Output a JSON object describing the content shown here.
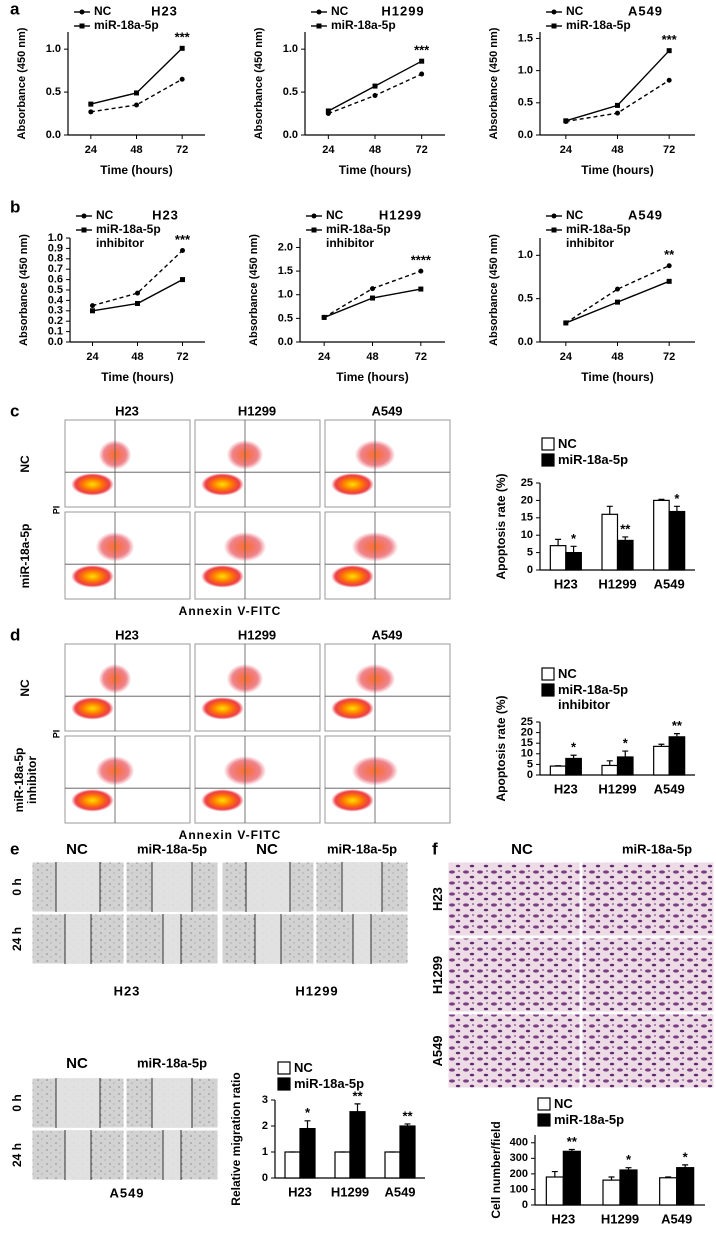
{
  "chart_data": [
    {
      "type": "line",
      "title": "H23",
      "x": [
        24,
        48,
        72
      ],
      "xlim": [
        12,
        84
      ],
      "xticks": [
        24,
        48,
        72
      ],
      "ylim": [
        0,
        1.2
      ],
      "yticks": [
        {
          "value": 0,
          "label": "0.0"
        },
        0.5,
        {
          "value": 1,
          "label": "1.0"
        }
      ],
      "x_label": "Time (hours)",
      "y_label": "Absorbance (450 nm)",
      "annotation": "***",
      "series": [
        {
          "name": "NC",
          "color": "#000000",
          "dashed": true,
          "marker": "circle",
          "values": [
            0.27,
            0.35,
            0.65
          ]
        },
        {
          "name": "miR-18a-5p",
          "color": "#000000",
          "dashed": false,
          "marker": "square",
          "values": [
            0.36,
            0.49,
            1.01
          ]
        }
      ]
    },
    {
      "type": "line",
      "title": "H1299",
      "x": [
        24,
        48,
        72
      ],
      "xlim": [
        12,
        84
      ],
      "xticks": [
        24,
        48,
        72
      ],
      "ylim": [
        0,
        1.2
      ],
      "yticks": [
        {
          "value": 0,
          "label": "0.0"
        },
        0.5,
        {
          "value": 1,
          "label": "1.0"
        }
      ],
      "x_label": "Time (hours)",
      "y_label": "Absorbance (450 nm)",
      "annotation": "***",
      "series": [
        {
          "name": "NC",
          "color": "#000000",
          "dashed": true,
          "marker": "circle",
          "values": [
            0.25,
            0.46,
            0.71
          ]
        },
        {
          "name": "miR-18a-5p",
          "color": "#000000",
          "dashed": false,
          "marker": "square",
          "values": [
            0.28,
            0.57,
            0.86
          ]
        }
      ]
    },
    {
      "type": "line",
      "title": "A549",
      "x": [
        24,
        48,
        72
      ],
      "xlim": [
        12,
        84
      ],
      "xticks": [
        24,
        48,
        72
      ],
      "ylim": [
        0,
        1.6
      ],
      "yticks": [
        {
          "value": 0,
          "label": "0.0"
        },
        0.5,
        {
          "value": 1,
          "label": "1.0"
        },
        1.5
      ],
      "x_label": "Time (hours)",
      "y_label": "Absorbance (450 nm)",
      "annotation": "***",
      "series": [
        {
          "name": "NC",
          "color": "#000000",
          "dashed": true,
          "marker": "circle",
          "values": [
            0.21,
            0.34,
            0.85
          ]
        },
        {
          "name": "miR-18a-5p",
          "color": "#000000",
          "dashed": false,
          "marker": "square",
          "values": [
            0.22,
            0.46,
            1.31
          ]
        }
      ]
    },
    {
      "type": "line",
      "title": "H23",
      "x": [
        24,
        48,
        72
      ],
      "xlim": [
        12,
        84
      ],
      "xticks": [
        24,
        48,
        72
      ],
      "ylim": [
        0,
        1
      ],
      "yticks": [
        {
          "value": 0,
          "label": "0.0"
        },
        0.1,
        0.2,
        0.3,
        0.4,
        0.5,
        0.6,
        0.7,
        0.8,
        0.9,
        {
          "value": 1,
          "label": "1.0"
        }
      ],
      "x_label": "Time (hours)",
      "y_label": "Absorbance (450 nm)",
      "annotation": "***",
      "series": [
        {
          "name": "NC",
          "color": "#000000",
          "dashed": true,
          "marker": "circle",
          "values": [
            0.35,
            0.47,
            0.88
          ]
        },
        {
          "name": "miR-18a-5p inhibitor",
          "color": "#000000",
          "dashed": false,
          "marker": "square",
          "values": [
            0.3,
            0.37,
            0.6
          ]
        }
      ]
    },
    {
      "type": "line",
      "title": "H1299",
      "x": [
        24,
        48,
        72
      ],
      "xlim": [
        12,
        84
      ],
      "xticks": [
        24,
        48,
        72
      ],
      "ylim": [
        0,
        2.2
      ],
      "yticks": [
        {
          "value": 0,
          "label": "0.0"
        },
        0.5,
        {
          "value": 1,
          "label": "1.0"
        },
        1.5,
        {
          "value": 2,
          "label": "2.0"
        }
      ],
      "x_label": "Time (hours)",
      "y_label": "Absorbance (450 nm)",
      "annotation": "****",
      "series": [
        {
          "name": "NC",
          "color": "#000000",
          "dashed": true,
          "marker": "circle",
          "values": [
            0.52,
            1.13,
            1.5
          ]
        },
        {
          "name": "miR-18a-5p inhibitor",
          "color": "#000000",
          "dashed": false,
          "marker": "square",
          "values": [
            0.52,
            0.93,
            1.12
          ]
        }
      ]
    },
    {
      "type": "line",
      "title": "A549",
      "x": [
        24,
        48,
        72
      ],
      "xlim": [
        12,
        84
      ],
      "xticks": [
        24,
        48,
        72
      ],
      "ylim": [
        0,
        1.2
      ],
      "yticks": [
        {
          "value": 0,
          "label": "0.0"
        },
        0.5,
        {
          "value": 1,
          "label": "1.0"
        }
      ],
      "x_label": "Time (hours)",
      "y_label": "Absorbance (450 nm)",
      "annotation": "**",
      "series": [
        {
          "name": "NC",
          "color": "#000000",
          "dashed": true,
          "marker": "circle",
          "values": [
            0.22,
            0.61,
            0.88
          ]
        },
        {
          "name": "miR-18a-5p inhibitor",
          "color": "#000000",
          "dashed": false,
          "marker": "square",
          "values": [
            0.22,
            0.46,
            0.7
          ]
        }
      ]
    },
    {
      "type": "bar",
      "y_label": "Apoptosis rate (%)",
      "categories": [
        "H23",
        "H1299",
        "A549"
      ],
      "ylim": [
        0,
        25
      ],
      "yticks": [
        0,
        5,
        10,
        15,
        20,
        25
      ],
      "significance": [
        "*",
        "**",
        "*"
      ],
      "series": [
        {
          "name": "NC",
          "color": "#ffffff",
          "values": [
            7,
            16,
            20
          ],
          "errors": [
            1.8,
            2.3,
            0.3
          ]
        },
        {
          "name": "miR-18a-5p",
          "color": "#000000",
          "values": [
            5,
            8.5,
            16.8
          ],
          "errors": [
            1.8,
            1,
            1.5
          ]
        }
      ]
    },
    {
      "type": "bar",
      "y_label": "Apoptosis rate (%)",
      "categories": [
        "H23",
        "H1299",
        "A549"
      ],
      "ylim": [
        0,
        25
      ],
      "yticks": [
        0,
        5,
        10,
        15,
        20,
        25
      ],
      "significance": [
        "*",
        "*",
        "**"
      ],
      "series": [
        {
          "name": "NC",
          "color": "#ffffff",
          "values": [
            4.2,
            4.5,
            13.5
          ],
          "errors": [
            0.2,
            2.2,
            1
          ]
        },
        {
          "name": "miR-18a-5p inhibitor",
          "color": "#000000",
          "values": [
            7.8,
            8.5,
            18
          ],
          "errors": [
            1.5,
            2.8,
            1.5
          ]
        }
      ]
    },
    {
      "type": "bar",
      "y_label": "Relative migration ratio",
      "categories": [
        "H23",
        "H1299",
        "A549"
      ],
      "ylim": [
        0,
        3
      ],
      "yticks": [
        0,
        1,
        2,
        3
      ],
      "significance": [
        "*",
        "**",
        "**"
      ],
      "series": [
        {
          "name": "NC",
          "color": "#ffffff",
          "values": [
            1,
            1,
            1
          ],
          "errors": [
            0,
            0,
            0
          ]
        },
        {
          "name": "miR-18a-5p",
          "color": "#000000",
          "values": [
            1.9,
            2.55,
            2
          ],
          "errors": [
            0.3,
            0.3,
            0.08
          ]
        }
      ]
    },
    {
      "type": "bar",
      "y_label": "Cell number/field",
      "categories": [
        "H23",
        "H1299",
        "A549"
      ],
      "ylim": [
        0,
        450
      ],
      "yticks": [
        0,
        100,
        200,
        300,
        400
      ],
      "significance": [
        "**",
        "*",
        "*"
      ],
      "series": [
        {
          "name": "NC",
          "color": "#ffffff",
          "values": [
            180,
            160,
            175
          ],
          "errors": [
            35,
            20,
            5
          ]
        },
        {
          "name": "miR-18a-5p",
          "color": "#000000",
          "values": [
            345,
            225,
            240
          ],
          "errors": [
            12,
            15,
            18
          ]
        }
      ]
    }
  ],
  "panels": {
    "a": {
      "letter": "a"
    },
    "b": {
      "letter": "b"
    },
    "c": {
      "letter": "c",
      "columns": [
        "H23",
        "H1299",
        "A549"
      ],
      "rows": [
        "NC",
        "miR-18a-5p"
      ],
      "y_label": "PI",
      "x_label": "Annexin V-FITC"
    },
    "d": {
      "letter": "d",
      "columns": [
        "H23",
        "H1299",
        "A549"
      ],
      "rows": [
        "NC",
        "miR-18a-5p inhibitor"
      ],
      "y_label": "PI",
      "x_label": "Annexin V-FITC"
    },
    "e": {
      "letter": "e",
      "groups": [
        {
          "columns": [
            "NC",
            "miR-18a-5p"
          ],
          "rows": [
            "0 h",
            "24 h"
          ],
          "cell_line": "H23"
        },
        {
          "columns": [
            "NC",
            "miR-18a-5p"
          ],
          "cell_line": "H1299"
        },
        {
          "columns": [
            "NC",
            "miR-18a-5p"
          ],
          "rows": [
            "0 h",
            "24 h"
          ],
          "cell_line": "A549"
        }
      ]
    },
    "f": {
      "letter": "f",
      "columns": [
        "NC",
        "miR-18a-5p"
      ],
      "rows": [
        "H23",
        "H1299",
        "A549"
      ]
    }
  }
}
